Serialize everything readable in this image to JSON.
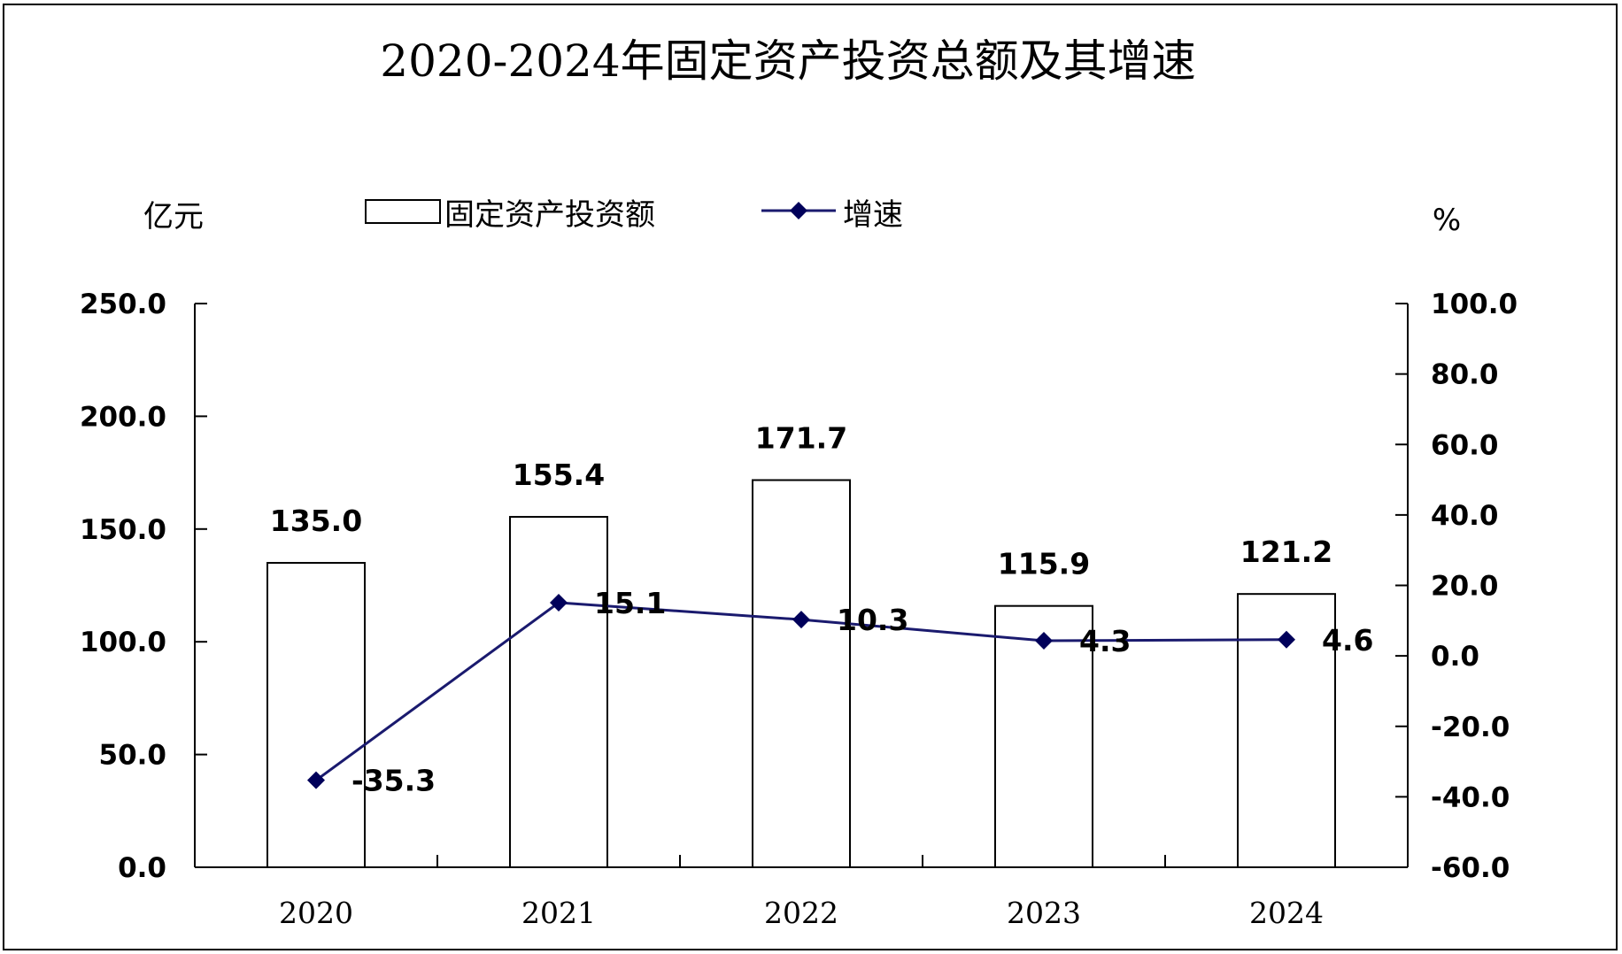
{
  "chart_data": {
    "type": "bar",
    "title": "2020-2024年固定资产投资总额及其增速",
    "categories": [
      "2020",
      "2021",
      "2022",
      "2023",
      "2024"
    ],
    "y_left": {
      "unit": "亿元",
      "min": 0,
      "max": 250,
      "ticks": [
        "0.0",
        "50.0",
        "100.0",
        "150.0",
        "200.0",
        "250.0"
      ]
    },
    "y_right": {
      "unit": "%",
      "min": -60,
      "max": 100,
      "ticks": [
        "-60.0",
        "-40.0",
        "-20.0",
        "0.0",
        "20.0",
        "40.0",
        "60.0",
        "80.0",
        "100.0"
      ]
    },
    "series": [
      {
        "name": "固定资产投资额",
        "kind": "bar",
        "axis": "left",
        "values": [
          135.0,
          155.4,
          171.7,
          115.9,
          121.2
        ],
        "labels": [
          "135.0",
          "155.4",
          "171.7",
          "115.9",
          "121.2"
        ]
      },
      {
        "name": "增速",
        "kind": "line",
        "axis": "right",
        "color": "#1a1a6e",
        "values": [
          -35.3,
          15.1,
          10.3,
          4.3,
          4.6
        ],
        "labels": [
          "-35.3",
          "15.1",
          "10.3",
          "4.3",
          "4.6"
        ]
      }
    ],
    "legend_position": "top",
    "grid": false
  }
}
